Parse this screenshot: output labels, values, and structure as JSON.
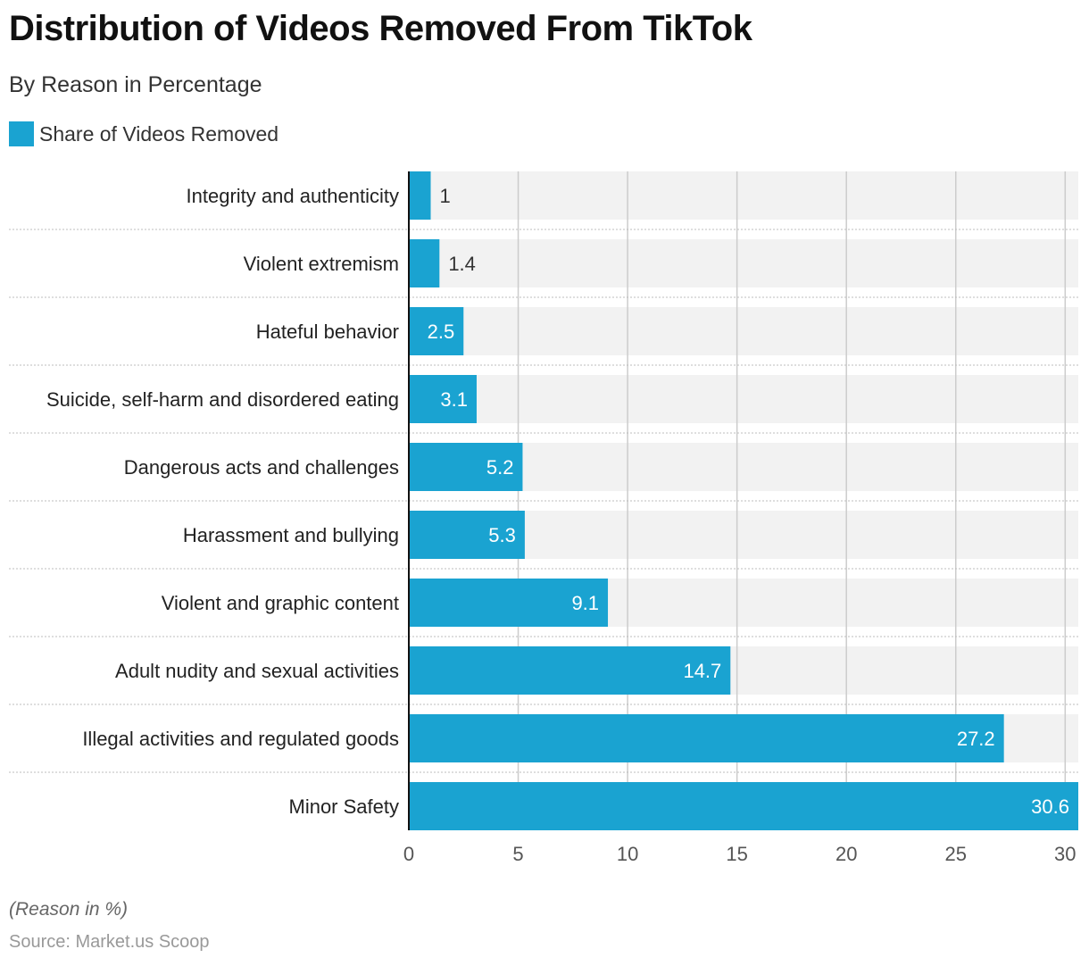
{
  "title": "Distribution of Videos Removed From TikTok",
  "subtitle": "By Reason in Percentage",
  "legend": {
    "label": "Share of Videos Removed",
    "color": "#1aa3d1"
  },
  "footnote": "(Reason in %)",
  "source": "Source: Market.us Scoop",
  "colors": {
    "bar": "#1aa3d1",
    "track": "#f2f2f2",
    "grid": "#cccccc",
    "separator": "#bdbdbd",
    "axis": "#111111"
  },
  "chart_data": {
    "type": "bar",
    "orientation": "horizontal",
    "categories": [
      "Integrity and authenticity",
      "Violent extremism",
      "Hateful behavior",
      "Suicide, self-harm and disordered eating",
      "Dangerous acts and challenges",
      "Harassment and bullying",
      "Violent and graphic content",
      "Adult nudity and sexual activities",
      "Illegal activities and regulated goods",
      "Minor Safety"
    ],
    "series": [
      {
        "name": "Share of Videos Removed",
        "values": [
          1,
          1.4,
          2.5,
          3.1,
          5.2,
          5.3,
          9.1,
          14.7,
          27.2,
          30.6
        ]
      }
    ],
    "data_labels": [
      "1",
      "1.4",
      "2.5",
      "3.1",
      "5.2",
      "5.3",
      "9.1",
      "14.7",
      "27.2",
      "30.6"
    ],
    "xlim": [
      0,
      30.6
    ],
    "xticks": [
      0,
      5,
      10,
      15,
      20,
      25,
      30
    ],
    "xlabel": "",
    "ylabel": "",
    "grid": true,
    "legend_position": "top-left"
  }
}
